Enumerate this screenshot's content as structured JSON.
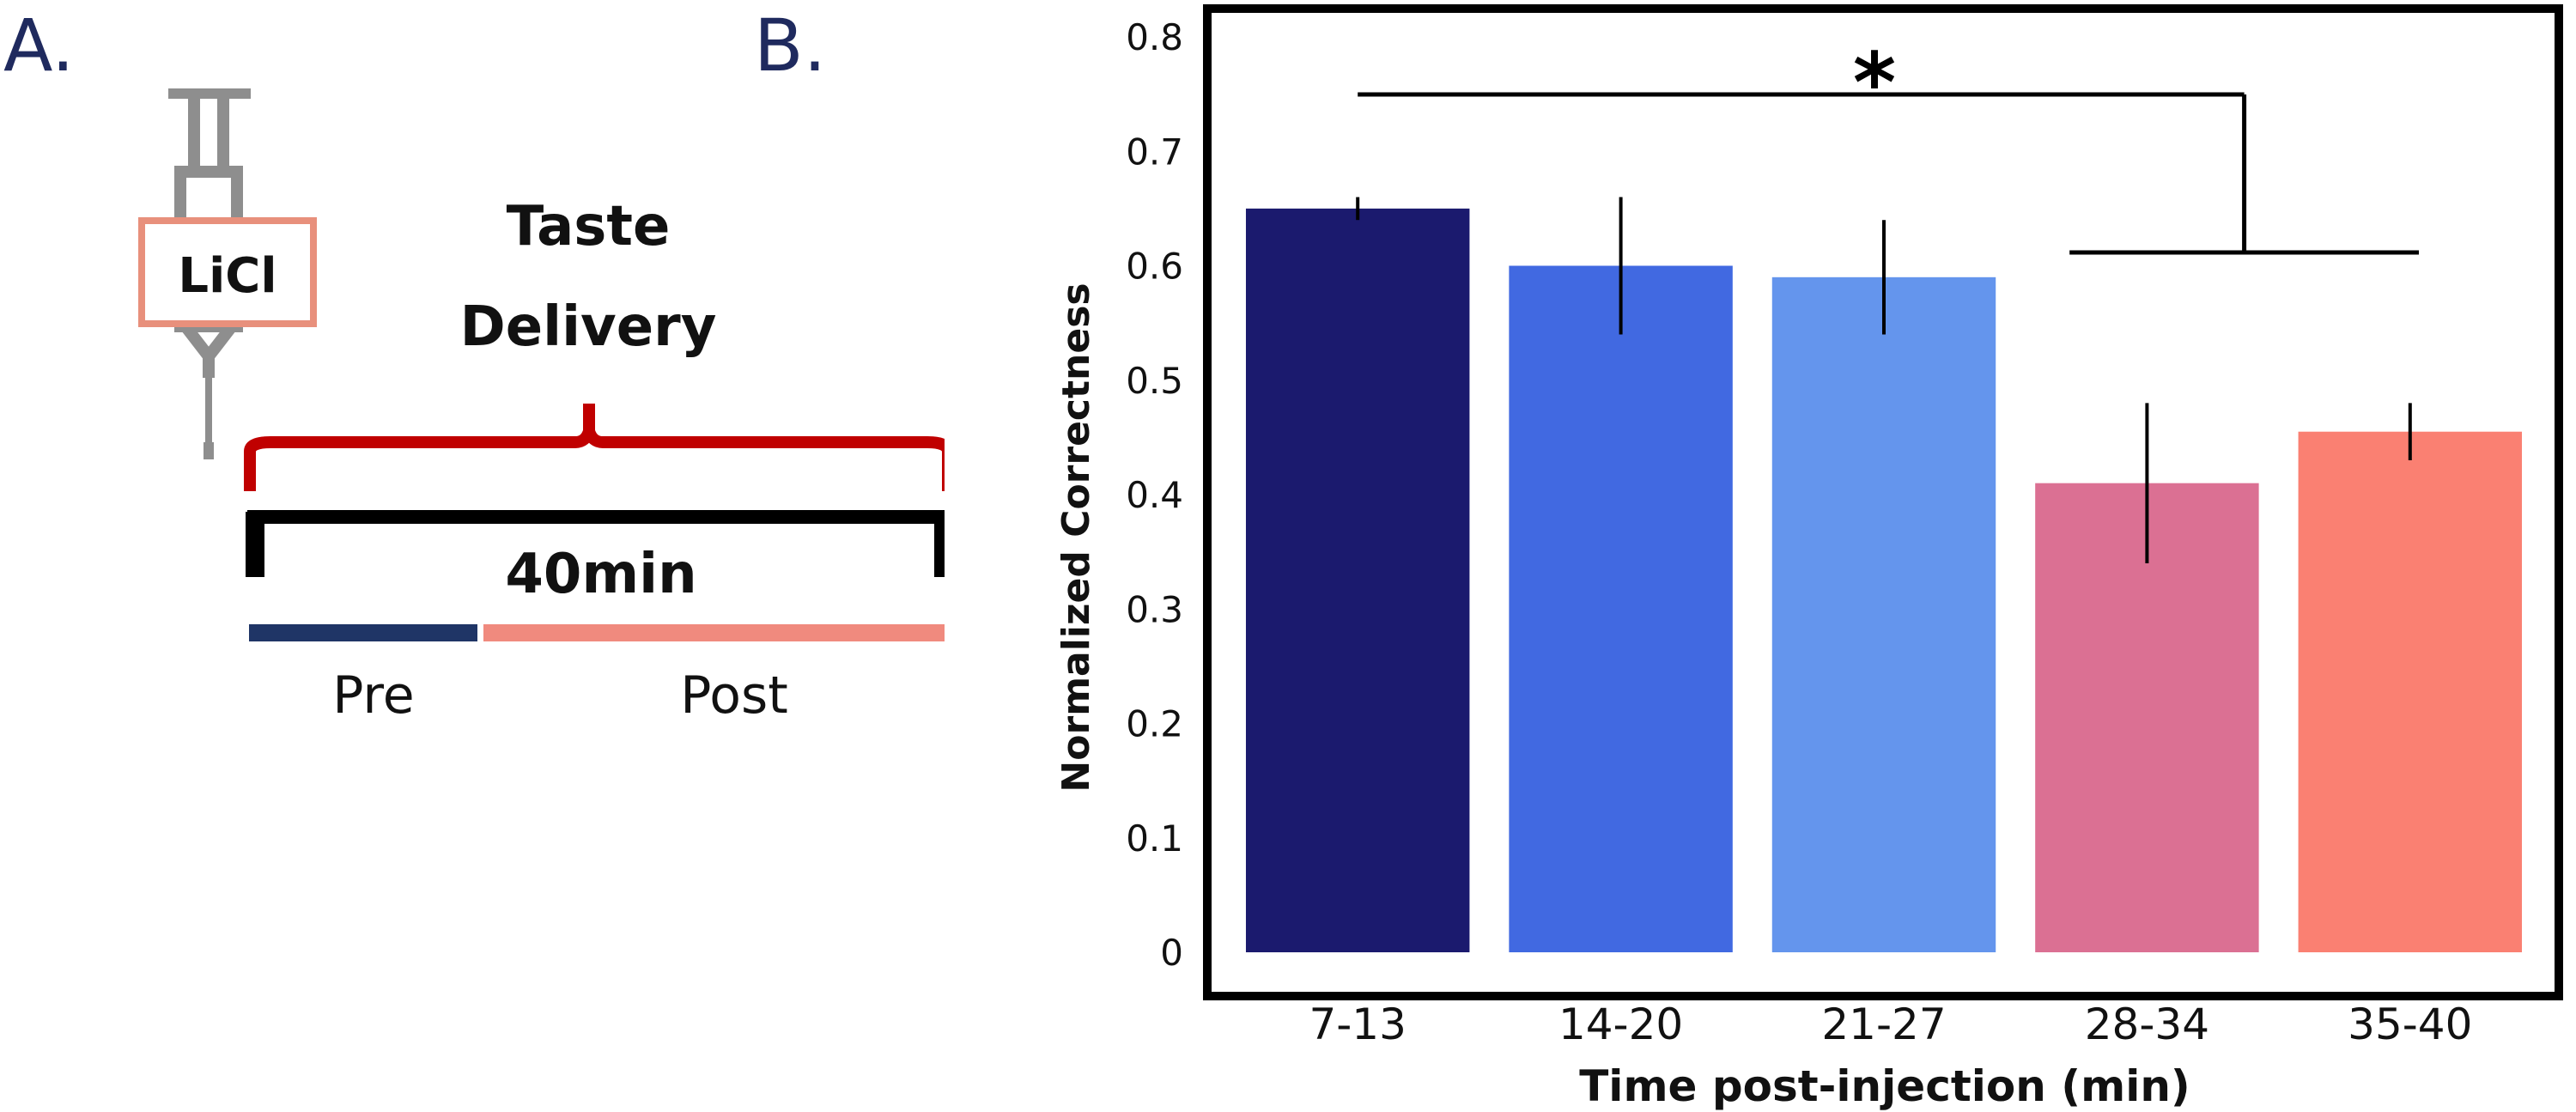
{
  "panels": {
    "a_label": "A.",
    "b_label": "B."
  },
  "diagram": {
    "syringe_label": "LiCl",
    "brace_label_line1": "Taste",
    "brace_label_line2": "Delivery",
    "duration_label": "40min",
    "pre_label": "Pre",
    "post_label": "Post",
    "colors": {
      "syringe": "#8e8e8e",
      "licl_box": "#e8907c",
      "brace": "#c00000",
      "bar": "#000000",
      "pre": "#1f3566",
      "post": "#f08a7e"
    }
  },
  "chart_data": {
    "type": "bar",
    "categories": [
      "7-13",
      "14-20",
      "21-27",
      "28-34",
      "35-40"
    ],
    "values": [
      0.65,
      0.6,
      0.59,
      0.41,
      0.455
    ],
    "error_low": [
      0.64,
      0.54,
      0.54,
      0.34,
      0.43
    ],
    "error_high": [
      0.66,
      0.66,
      0.64,
      0.48,
      0.48
    ],
    "colors": [
      "#1b1a6e",
      "#4169e1",
      "#6495ed",
      "#db7093",
      "#fa8072"
    ],
    "xlabel": "Time post-injection (min)",
    "ylabel": "Normalized Correctness",
    "ylim": [
      0,
      0.8
    ],
    "yticks": [
      "0",
      "0.1",
      "0.2",
      "0.3",
      "0.4",
      "0.5",
      "0.6",
      "0.7",
      "0.8"
    ],
    "grid": false,
    "annotation": "*",
    "significance": {
      "from_categories": [
        "7-13"
      ],
      "to_categories": [
        "28-34",
        "35-40"
      ]
    }
  }
}
